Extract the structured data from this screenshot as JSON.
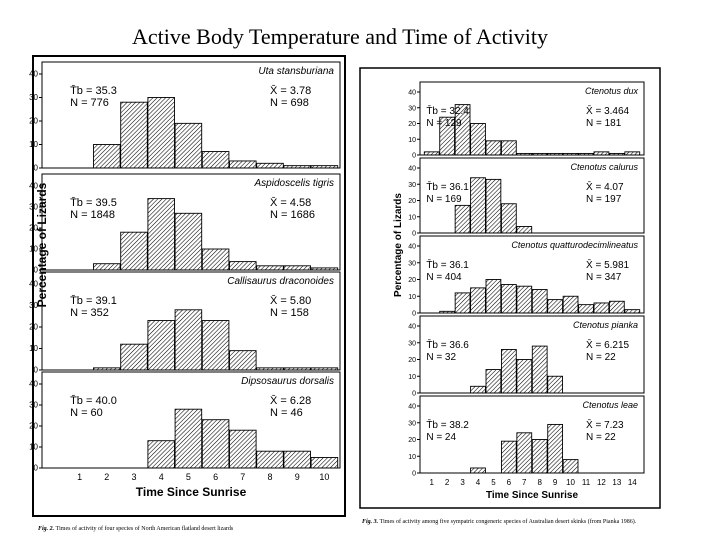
{
  "title": "Active Body Temperature and Time of Activity",
  "hatch_color": "#000000",
  "panel_sets": [
    {
      "id": "left",
      "ylabel": "Percentage of Lizards",
      "xlabel": "Time Since Sunrise",
      "x_ticks": [
        "1",
        "2",
        "3",
        "4",
        "5",
        "6",
        "7",
        "8",
        "9",
        "10"
      ],
      "caption_label": "Fig. 2.",
      "caption_text": "Times of activity of four species of North American flatland desert lizards",
      "chart_data": [
        {
          "type": "bar",
          "species": "Uta stansburiana",
          "ylim": [
            0,
            40
          ],
          "y_ticks": [
            "0",
            "10",
            "20",
            "30",
            "40"
          ],
          "x": [
            2,
            3,
            4,
            5,
            6,
            7,
            8,
            9,
            10
          ],
          "values": [
            10,
            28,
            30,
            19,
            7,
            3,
            2,
            1,
            1
          ],
          "stat_left": {
            "temp": "T̄b = 35.3",
            "n": "N = 776"
          },
          "stat_right": {
            "mean": "X̄ = 3.78",
            "n": "N = 698"
          }
        },
        {
          "type": "bar",
          "species": "Aspidoscelis tigris",
          "ylim": [
            0,
            40
          ],
          "y_ticks": [
            "0",
            "10",
            "20",
            "30",
            "40"
          ],
          "x": [
            2,
            3,
            4,
            5,
            6,
            7,
            8,
            9,
            10
          ],
          "values": [
            3,
            18,
            34,
            27,
            10,
            4,
            2,
            2,
            1
          ],
          "stat_left": {
            "temp": "T̄b = 39.5",
            "n": "N = 1848"
          },
          "stat_right": {
            "mean": "X̄ = 4.58",
            "n": "N = 1686"
          }
        },
        {
          "type": "bar",
          "species": "Callisaurus draconoides",
          "ylim": [
            0,
            40
          ],
          "y_ticks": [
            "0",
            "10",
            "20",
            "30",
            "40"
          ],
          "x": [
            2,
            3,
            4,
            5,
            6,
            7,
            8,
            9,
            10
          ],
          "values": [
            1,
            12,
            23,
            28,
            23,
            9,
            1,
            1,
            1
          ],
          "stat_left": {
            "temp": "T̄b = 39.1",
            "n": "N = 352"
          },
          "stat_right": {
            "mean": "X̄ = 5.80",
            "n": "N = 158"
          }
        },
        {
          "type": "bar",
          "species": "Dipsosaurus dorsalis",
          "ylim": [
            0,
            40
          ],
          "y_ticks": [
            "0",
            "10",
            "20",
            "30",
            "40"
          ],
          "x": [
            4,
            5,
            6,
            7,
            8,
            9,
            10
          ],
          "values": [
            13,
            28,
            23,
            18,
            8,
            8,
            5
          ],
          "stat_left": {
            "temp": "T̄b = 40.0",
            "n": "N = 60"
          },
          "stat_right": {
            "mean": "X̄ = 6.28",
            "n": "N = 46"
          }
        }
      ]
    },
    {
      "id": "right",
      "ylabel": "Percentage of Lizards",
      "xlabel": "Time Since Sunrise",
      "x_ticks": [
        "1",
        "2",
        "3",
        "4",
        "5",
        "6",
        "7",
        "8",
        "9",
        "10",
        "11",
        "12",
        "13",
        "14"
      ],
      "caption_label": "Fig. 3.",
      "caption_text": "Times of activity among five sympatric congeneric species of Australian desert skinks (from Pianka 1986).",
      "chart_data": [
        {
          "type": "bar",
          "species": "Ctenotus dux",
          "ylim": [
            0,
            40
          ],
          "y_ticks": [
            "0",
            "10",
            "20",
            "30",
            "40"
          ],
          "x": [
            1,
            2,
            3,
            4,
            5,
            6,
            7,
            8,
            9,
            10,
            11,
            12,
            13,
            14
          ],
          "values": [
            2,
            24,
            32,
            20,
            9,
            9,
            1,
            1,
            1,
            1,
            1,
            2,
            1,
            2
          ],
          "stat_left": {
            "temp": "T̄b = 32.4",
            "n": "N = 129"
          },
          "stat_right": {
            "mean": "X̄ = 3.464",
            "n": "N = 181"
          }
        },
        {
          "type": "bar",
          "species": "Ctenotus calurus",
          "ylim": [
            0,
            40
          ],
          "y_ticks": [
            "0",
            "10",
            "20",
            "30",
            "40"
          ],
          "x": [
            3,
            4,
            5,
            6,
            7
          ],
          "values": [
            17,
            34,
            33,
            18,
            4
          ],
          "stat_left": {
            "temp": "T̄b = 36.1",
            "n": "N = 169"
          },
          "stat_right": {
            "mean": "X̄ = 4.07",
            "n": "N = 197"
          }
        },
        {
          "type": "bar",
          "species": "Ctenotus quatturodecimlineatus",
          "ylim": [
            0,
            40
          ],
          "y_ticks": [
            "0",
            "10",
            "20",
            "30",
            "40"
          ],
          "x": [
            2,
            3,
            4,
            5,
            6,
            7,
            8,
            9,
            10,
            11,
            12,
            13,
            14
          ],
          "values": [
            1,
            12,
            15,
            20,
            17,
            16,
            14,
            8,
            10,
            5,
            6,
            7,
            2
          ],
          "stat_left": {
            "temp": "T̄b = 36.1",
            "n": "N = 404"
          },
          "stat_right": {
            "mean": "X̄ = 5.981",
            "n": "N = 347"
          }
        },
        {
          "type": "bar",
          "species": "Ctenotus pianka",
          "ylim": [
            0,
            40
          ],
          "y_ticks": [
            "0",
            "10",
            "20",
            "30",
            "40"
          ],
          "x": [
            4,
            5,
            6,
            7,
            8,
            9
          ],
          "values": [
            4,
            14,
            26,
            20,
            28,
            10
          ],
          "stat_left": {
            "temp": "T̄b = 36.6",
            "n": "N = 32"
          },
          "stat_right": {
            "mean": "X̄ = 6.215",
            "n": "N = 22"
          }
        },
        {
          "type": "bar",
          "species": "Ctenotus leae",
          "ylim": [
            0,
            40
          ],
          "y_ticks": [
            "0",
            "10",
            "20",
            "30",
            "40"
          ],
          "x": [
            4,
            6,
            7,
            8,
            9,
            10
          ],
          "values": [
            3,
            19,
            24,
            20,
            29,
            8
          ],
          "stat_left": {
            "temp": "T̄b = 38.2",
            "n": "N = 24"
          },
          "stat_right": {
            "mean": "X̄ = 7.23",
            "n": "N = 22"
          }
        }
      ]
    }
  ]
}
